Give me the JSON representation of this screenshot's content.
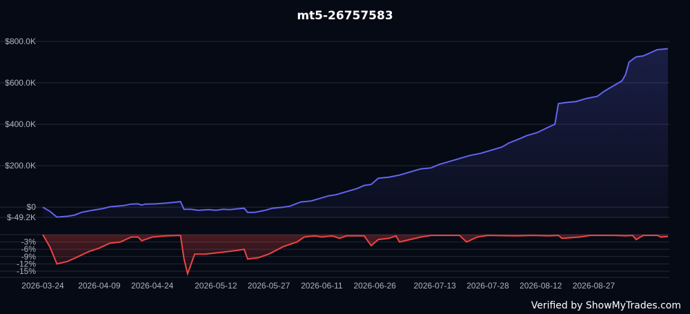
{
  "colors": {
    "background": "#060a14",
    "equity_line": "#6366f1",
    "drawdown_line": "#ef4444",
    "grid": "#262b38"
  },
  "footer": {
    "verified_text": "Verified by ShowMyTrades.com"
  },
  "chart_data": [
    {
      "type": "area",
      "title": "mt5-26757583",
      "ylabel": "",
      "xlabel": "",
      "y_ticks": [
        "$800.0K",
        "$600.0K",
        "$400.0K",
        "$200.0K",
        "$0",
        "$-49.2K"
      ],
      "ylim": [
        -49200,
        800000
      ],
      "grid": true,
      "series": [
        {
          "points": [
            [
              "2026-03-24",
              0
            ],
            [
              "2026-03-26",
              -20000
            ],
            [
              "2026-03-28",
              -48000
            ],
            [
              "2026-03-31",
              -44000
            ],
            [
              "2026-04-02",
              -38000
            ],
            [
              "2026-04-04",
              -25000
            ],
            [
              "2026-04-07",
              -15000
            ],
            [
              "2026-04-10",
              -7000
            ],
            [
              "2026-04-12",
              2000
            ],
            [
              "2026-04-14",
              5000
            ],
            [
              "2026-04-16",
              8000
            ],
            [
              "2026-04-18",
              15000
            ],
            [
              "2026-04-20",
              16000
            ],
            [
              "2026-04-21",
              10000
            ],
            [
              "2026-04-22",
              15000
            ],
            [
              "2026-04-25",
              16000
            ],
            [
              "2026-04-28",
              20000
            ],
            [
              "2026-05-01",
              25000
            ],
            [
              "2026-05-02",
              27000
            ],
            [
              "2026-05-03",
              -10000
            ],
            [
              "2026-05-05",
              -10000
            ],
            [
              "2026-05-07",
              -15000
            ],
            [
              "2026-05-10",
              -12000
            ],
            [
              "2026-05-12",
              -15000
            ],
            [
              "2026-05-14",
              -10000
            ],
            [
              "2026-05-16",
              -12000
            ],
            [
              "2026-05-18",
              -8000
            ],
            [
              "2026-05-20",
              -5000
            ],
            [
              "2026-05-21",
              -25000
            ],
            [
              "2026-05-23",
              -25000
            ],
            [
              "2026-05-26",
              -15000
            ],
            [
              "2026-05-28",
              -5000
            ],
            [
              "2026-05-31",
              0
            ],
            [
              "2026-06-02",
              5000
            ],
            [
              "2026-06-05",
              25000
            ],
            [
              "2026-06-08",
              30000
            ],
            [
              "2026-06-10",
              40000
            ],
            [
              "2026-06-13",
              55000
            ],
            [
              "2026-06-15",
              60000
            ],
            [
              "2026-06-18",
              75000
            ],
            [
              "2026-06-21",
              90000
            ],
            [
              "2026-06-23",
              105000
            ],
            [
              "2026-06-25",
              110000
            ],
            [
              "2026-06-27",
              140000
            ],
            [
              "2026-06-30",
              145000
            ],
            [
              "2026-07-03",
              155000
            ],
            [
              "2026-07-06",
              170000
            ],
            [
              "2026-07-09",
              185000
            ],
            [
              "2026-07-12",
              190000
            ],
            [
              "2026-07-14",
              205000
            ],
            [
              "2026-07-17",
              220000
            ],
            [
              "2026-07-20",
              235000
            ],
            [
              "2026-07-23",
              250000
            ],
            [
              "2026-07-26",
              260000
            ],
            [
              "2026-07-29",
              275000
            ],
            [
              "2026-08-01",
              290000
            ],
            [
              "2026-08-03",
              310000
            ],
            [
              "2026-08-06",
              330000
            ],
            [
              "2026-08-08",
              345000
            ],
            [
              "2026-08-11",
              360000
            ],
            [
              "2026-08-14",
              385000
            ],
            [
              "2026-08-16",
              400000
            ],
            [
              "2026-08-17",
              500000
            ],
            [
              "2026-08-19",
              505000
            ],
            [
              "2026-08-22",
              510000
            ],
            [
              "2026-08-25",
              525000
            ],
            [
              "2026-08-28",
              535000
            ],
            [
              "2026-08-30",
              560000
            ],
            [
              "2026-09-02",
              590000
            ],
            [
              "2026-09-04",
              610000
            ],
            [
              "2026-09-05",
              640000
            ],
            [
              "2026-09-06",
              700000
            ],
            [
              "2026-09-08",
              725000
            ],
            [
              "2026-09-10",
              730000
            ],
            [
              "2026-09-12",
              745000
            ],
            [
              "2026-09-14",
              760000
            ],
            [
              "2026-09-17",
              765000
            ]
          ]
        }
      ]
    },
    {
      "type": "area",
      "title": "",
      "y_ticks": [
        "-3%",
        "-6%",
        "-9%",
        "-12%",
        "-15%"
      ],
      "ylim": [
        -17,
        0
      ],
      "grid": true,
      "x_ticks": [
        "2026-03-24",
        "2026-04-09",
        "2026-04-24",
        "2026-05-12",
        "2026-05-27",
        "2026-06-11",
        "2026-06-26",
        "2026-07-13",
        "2026-07-28",
        "2026-08-12",
        "2026-08-27"
      ],
      "series": [
        {
          "points": [
            [
              "2026-03-24",
              0
            ],
            [
              "2026-03-26",
              -5
            ],
            [
              "2026-03-28",
              -12
            ],
            [
              "2026-03-31",
              -11
            ],
            [
              "2026-04-03",
              -9
            ],
            [
              "2026-04-06",
              -7
            ],
            [
              "2026-04-09",
              -5.5
            ],
            [
              "2026-04-12",
              -3.5
            ],
            [
              "2026-04-15",
              -3
            ],
            [
              "2026-04-18",
              -1
            ],
            [
              "2026-04-20",
              -1
            ],
            [
              "2026-04-21",
              -2.5
            ],
            [
              "2026-04-24",
              -1
            ],
            [
              "2026-04-28",
              -0.5
            ],
            [
              "2026-05-02",
              -0.3
            ],
            [
              "2026-05-03",
              -10
            ],
            [
              "2026-05-04",
              -16
            ],
            [
              "2026-05-06",
              -8
            ],
            [
              "2026-05-09",
              -8
            ],
            [
              "2026-05-12",
              -7.5
            ],
            [
              "2026-05-15",
              -7
            ],
            [
              "2026-05-18",
              -6.5
            ],
            [
              "2026-05-20",
              -6
            ],
            [
              "2026-05-21",
              -10
            ],
            [
              "2026-05-24",
              -9.5
            ],
            [
              "2026-05-27",
              -8
            ],
            [
              "2026-05-31",
              -5
            ],
            [
              "2026-06-04",
              -3
            ],
            [
              "2026-06-06",
              -1
            ],
            [
              "2026-06-09",
              -0.5
            ],
            [
              "2026-06-11",
              -1
            ],
            [
              "2026-06-14",
              -0.5
            ],
            [
              "2026-06-16",
              -1.5
            ],
            [
              "2026-06-18",
              -0.5
            ],
            [
              "2026-06-23",
              -0.5
            ],
            [
              "2026-06-25",
              -4.5
            ],
            [
              "2026-06-27",
              -2
            ],
            [
              "2026-06-30",
              -1.5
            ],
            [
              "2026-07-02",
              -0.5
            ],
            [
              "2026-07-03",
              -3
            ],
            [
              "2026-07-06",
              -2
            ],
            [
              "2026-07-09",
              -1
            ],
            [
              "2026-07-12",
              -0.3
            ],
            [
              "2026-07-20",
              -0.3
            ],
            [
              "2026-07-22",
              -3
            ],
            [
              "2026-07-25",
              -1
            ],
            [
              "2026-07-28",
              -0.3
            ],
            [
              "2026-08-05",
              -0.5
            ],
            [
              "2026-08-10",
              -0.3
            ],
            [
              "2026-08-14",
              -0.5
            ],
            [
              "2026-08-17",
              -0.3
            ],
            [
              "2026-08-18",
              -1.5
            ],
            [
              "2026-08-23",
              -1
            ],
            [
              "2026-08-26",
              -0.3
            ],
            [
              "2026-09-02",
              -0.3
            ],
            [
              "2026-09-05",
              -0.5
            ],
            [
              "2026-09-07",
              -0.3
            ],
            [
              "2026-09-08",
              -2
            ],
            [
              "2026-09-10",
              -0.3
            ],
            [
              "2026-09-14",
              -0.3
            ],
            [
              "2026-09-15",
              -1
            ],
            [
              "2026-09-17",
              -0.8
            ]
          ]
        }
      ]
    }
  ]
}
